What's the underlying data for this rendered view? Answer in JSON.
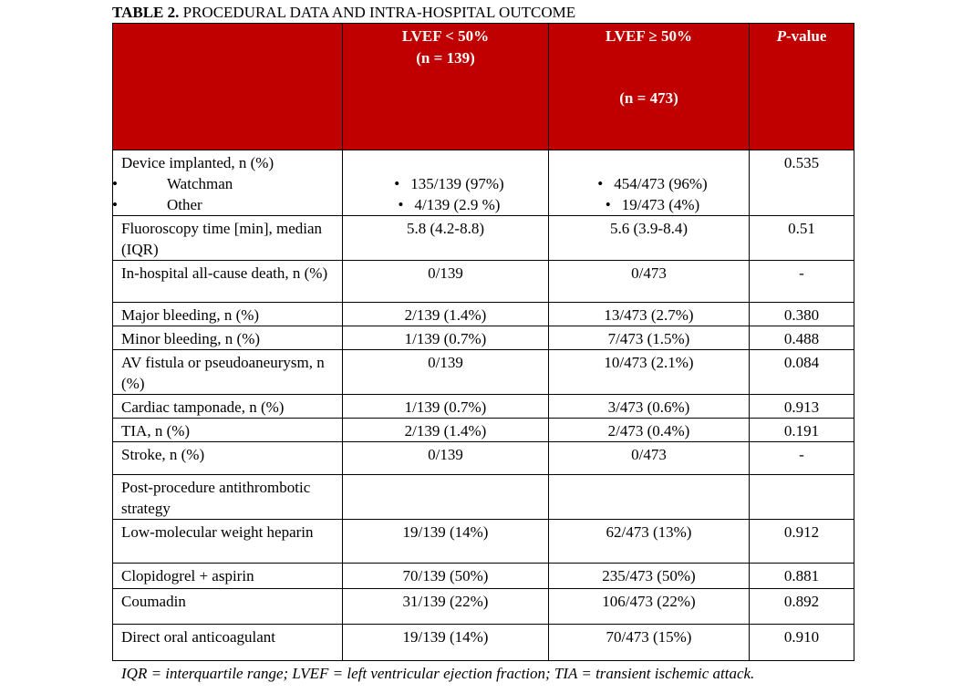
{
  "title": {
    "label": "TABLE 2.",
    "text": "PROCEDURAL DATA AND INTRA-HOSPITAL OUTCOME"
  },
  "header": {
    "col1": {
      "line1": "LVEF < 50%",
      "line2": "(n = 139)"
    },
    "col2": {
      "line1": "LVEF ≥ 50%",
      "line2": "(n = 473)"
    },
    "col3": {
      "italic": "P",
      "rest": "-value"
    }
  },
  "device_row": {
    "label": "Device implanted, n (%)",
    "items": [
      "Watchman",
      "Other"
    ],
    "col1": [
      "135/139 (97%)",
      "4/139 (2.9 %)"
    ],
    "col2": [
      "454/473 (96%)",
      "19/473 (4%)"
    ],
    "p": "0.535"
  },
  "rows": [
    [
      "Fluoroscopy time [min], median (IQR)",
      "5.8 (4.2-8.8)",
      "5.6 (3.9-8.4)",
      "0.51"
    ],
    [
      "In-hospital all-cause death, n (%)",
      "0/139",
      "0/473",
      "-"
    ],
    [
      "Major bleeding, n (%)",
      "2/139 (1.4%)",
      "13/473 (2.7%)",
      "0.380"
    ],
    [
      "Minor bleeding, n (%)",
      "1/139 (0.7%)",
      "7/473 (1.5%)",
      "0.488"
    ],
    [
      "AV fistula or pseudoaneurysm, n (%)",
      "0/139",
      "10/473 (2.1%)",
      "0.084"
    ],
    [
      "Cardiac tamponade, n (%)",
      "1/139 (0.7%)",
      "3/473 (0.6%)",
      "0.913"
    ],
    [
      "TIA, n (%)",
      "2/139 (1.4%)",
      "2/473 (0.4%)",
      "0.191"
    ],
    [
      "Stroke, n (%)",
      "0/139",
      "0/473",
      "-"
    ],
    [
      "Post-procedure antithrombotic strategy"
    ],
    [
      "Low-molecular weight heparin",
      "19/139 (14%)",
      "62/473 (13%)",
      "0.912"
    ],
    [
      "Clopidogrel + aspirin",
      "70/139 (50%)",
      "235/473 (50%)",
      "0.881"
    ],
    [
      "Coumadin",
      "31/139 (22%)",
      "106/473 (22%)",
      "0.892"
    ],
    [
      "Direct oral anticoagulant",
      "19/139 (14%)",
      "70/473 (15%)",
      "0.910"
    ]
  ],
  "footnote": "IQR = interquartile range; LVEF = left ventricular ejection fraction; TIA = transient ischemic attack."
}
